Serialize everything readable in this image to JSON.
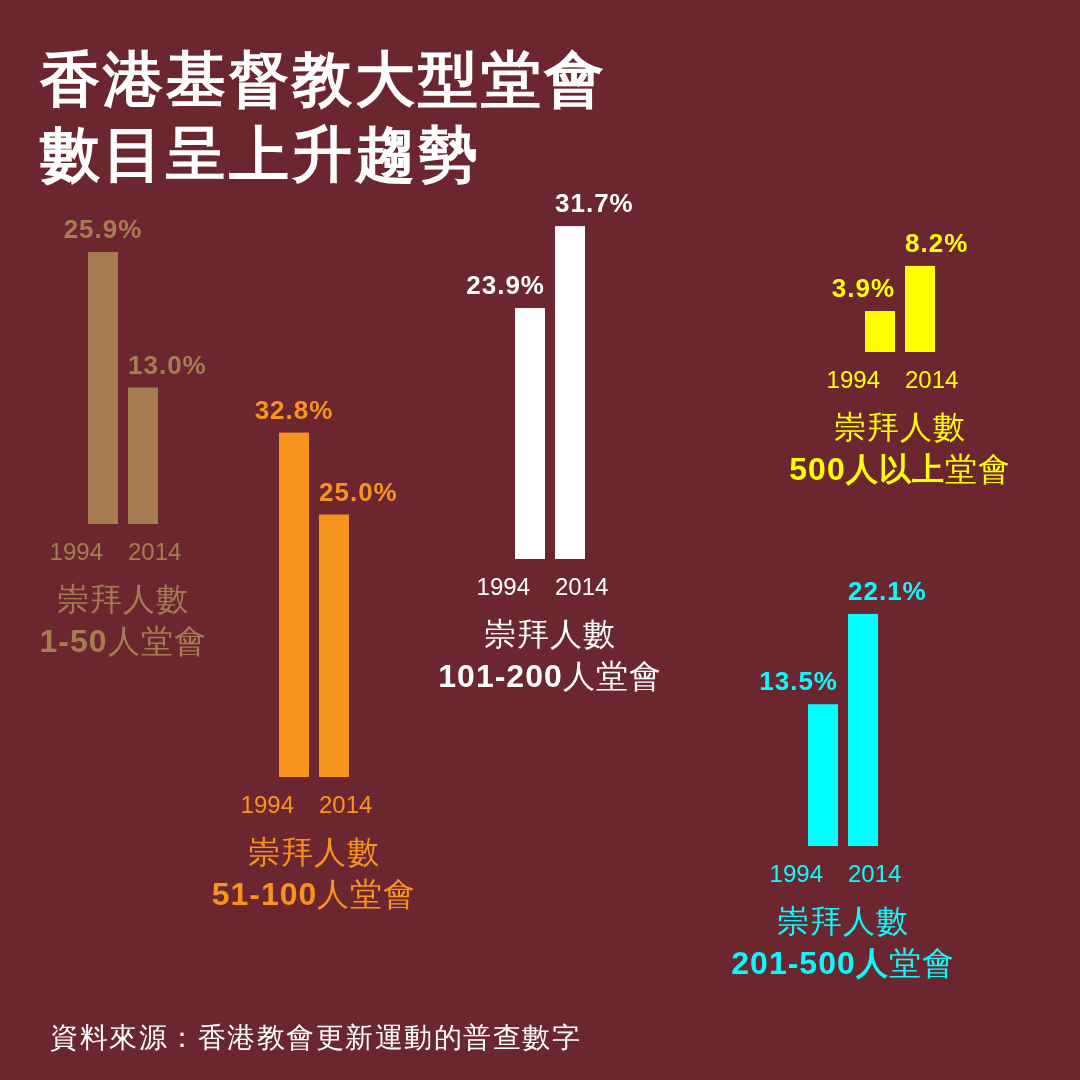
{
  "chart_data": [
    {
      "type": "other",
      "title": "香港基督教大型堂會數目呈上升趨勢",
      "annotations": [
        "資料來源：香港教會更新運動的普查數字"
      ]
    },
    {
      "type": "bar",
      "categories": [
        "1994",
        "2014"
      ],
      "values": [
        25.9,
        13.0
      ],
      "value_labels": [
        "25.9%",
        "13.0%"
      ],
      "color": "#a67c52",
      "xlabel": "崇拜人數\n**1-50**人堂會"
    },
    {
      "type": "bar",
      "categories": [
        "1994",
        "2014"
      ],
      "values": [
        32.8,
        25.0
      ],
      "value_labels": [
        "32.8%",
        "25.0%"
      ],
      "color": "#f7941d",
      "xlabel": "崇拜人數\n**51-100**人堂會"
    },
    {
      "type": "bar",
      "categories": [
        "1994",
        "2014"
      ],
      "values": [
        23.9,
        31.7
      ],
      "value_labels": [
        "23.9%",
        "31.7%"
      ],
      "color": "#ffffff",
      "xlabel": "崇拜人數\n**101-200**人堂會"
    },
    {
      "type": "bar",
      "categories": [
        "1994",
        "2014"
      ],
      "values": [
        3.9,
        8.2
      ],
      "value_labels": [
        "3.9%",
        "8.2%"
      ],
      "color": "#ffff00",
      "xlabel": "崇拜人數\n**500人以上**堂會"
    },
    {
      "type": "bar",
      "categories": [
        "1994",
        "2014"
      ],
      "values": [
        13.5,
        22.1
      ],
      "value_labels": [
        "13.5%",
        "22.1%"
      ],
      "color": "#00ffff",
      "xlabel": "崇拜人數\n**201-500人**堂會"
    }
  ]
}
